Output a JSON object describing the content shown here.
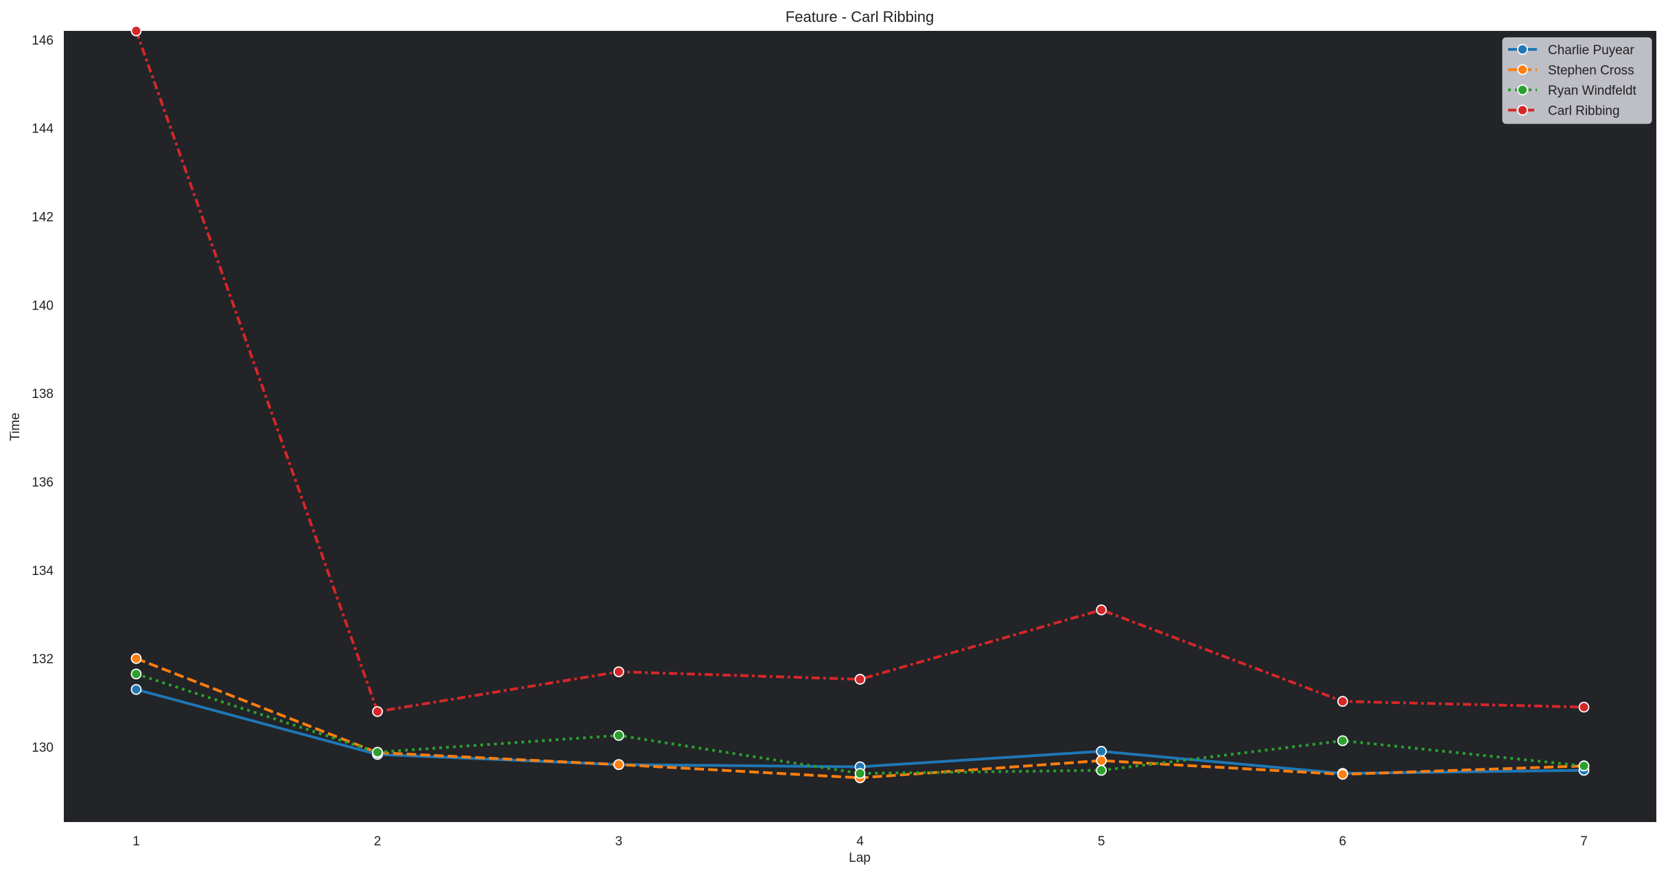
{
  "chart_data": {
    "type": "line",
    "title": "Feature - Carl Ribbing",
    "xlabel": "Lap",
    "ylabel": "Time",
    "x": [
      1,
      2,
      3,
      4,
      5,
      6,
      7
    ],
    "xticks": [
      "1",
      "2",
      "3",
      "4",
      "5",
      "6",
      "7"
    ],
    "yticks": [
      130,
      132,
      134,
      136,
      138,
      140,
      142,
      144,
      146
    ],
    "xlim": [
      0.7,
      7.3
    ],
    "ylim": [
      128.3,
      146.2
    ],
    "grid": false,
    "background": "#222428",
    "legend": "top-right",
    "series": [
      {
        "name": "Charlie Puyear",
        "color": "#1f77b4",
        "style": "solid",
        "values": [
          131.3,
          129.83,
          129.6,
          129.55,
          129.9,
          129.4,
          129.47
        ]
      },
      {
        "name": "Stephen Cross",
        "color": "#ff7f0e",
        "style": "dashed",
        "values": [
          132.0,
          129.87,
          129.6,
          129.3,
          129.69,
          129.38,
          129.57
        ]
      },
      {
        "name": "Ryan Windfeldt",
        "color": "#2ca02c",
        "style": "dotted",
        "values": [
          131.65,
          129.88,
          130.26,
          129.4,
          129.47,
          130.14,
          129.57
        ]
      },
      {
        "name": "Carl Ribbing",
        "color": "#d62728",
        "style": "dashdot",
        "values": [
          146.2,
          130.8,
          131.7,
          131.53,
          133.1,
          131.03,
          130.9
        ]
      }
    ]
  }
}
